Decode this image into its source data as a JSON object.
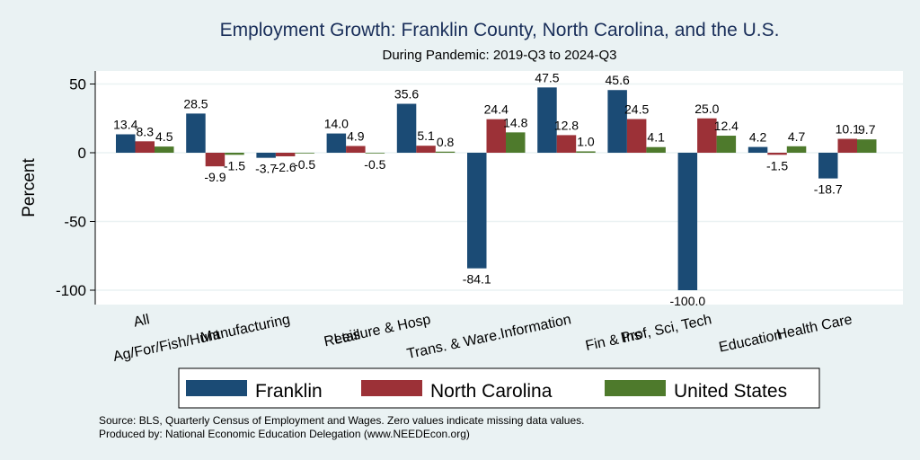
{
  "chart_data": {
    "type": "bar",
    "title": "Employment Growth: Franklin County, North Carolina, and the U.S.",
    "subtitle": "During Pandemic: 2019-Q3 to 2024-Q3",
    "ylabel": "Percent",
    "ylim": [
      -110,
      60
    ],
    "yticks": [
      50,
      0,
      -50,
      -100
    ],
    "categories": [
      "All",
      "Ag/For/Fish/Hunt",
      "Manufacturing",
      "Retail",
      "Leisure & Hosp",
      "Trans. & Ware.",
      "Information",
      "Fin & Ins",
      "Prof, Sci, Tech",
      "Education",
      "Health Care"
    ],
    "series": [
      {
        "name": "Franklin",
        "color": "#1b4b75",
        "values": [
          13.4,
          28.5,
          -3.7,
          14.0,
          35.6,
          -84.1,
          47.5,
          45.6,
          -100.0,
          4.2,
          -18.7
        ]
      },
      {
        "name": "North Carolina",
        "color": "#9c3137",
        "values": [
          8.3,
          -9.9,
          -2.6,
          4.9,
          5.1,
          24.4,
          12.8,
          24.5,
          25.0,
          -1.5,
          10.1
        ]
      },
      {
        "name": "United States",
        "color": "#4e7a2c",
        "values": [
          4.5,
          -1.5,
          -0.5,
          -0.5,
          0.8,
          14.8,
          1.0,
          4.1,
          12.4,
          4.7,
          9.7
        ]
      }
    ],
    "labels": [
      [
        "13.4",
        "8.3",
        "4.5"
      ],
      [
        "28.5",
        "-9.9",
        "-1.5"
      ],
      [
        "-3.7",
        "-2.6",
        "-0.5"
      ],
      [
        "14.0",
        "4.9",
        "-0.5"
      ],
      [
        "35.6",
        "5.1",
        "0.8"
      ],
      [
        "-84.1",
        "24.4",
        "14.8"
      ],
      [
        "47.5",
        "12.8",
        "1.0"
      ],
      [
        "45.6",
        "24.5",
        "4.1"
      ],
      [
        "-100.0",
        "25.0",
        "12.4"
      ],
      [
        "4.2",
        "-1.5",
        "4.7"
      ],
      [
        "-18.7",
        "10.1",
        "9.7"
      ]
    ],
    "ytick_labels": [
      "50",
      "0",
      "-50",
      "-100"
    ],
    "grid": true,
    "legend_position": "bottom"
  },
  "notes": {
    "source": "Source: BLS, Quarterly Census of Employment and Wages. Zero values indicate missing data values.",
    "produced": "Produced by: National Economic Education Delegation (www.NEEDEcon.org)"
  }
}
